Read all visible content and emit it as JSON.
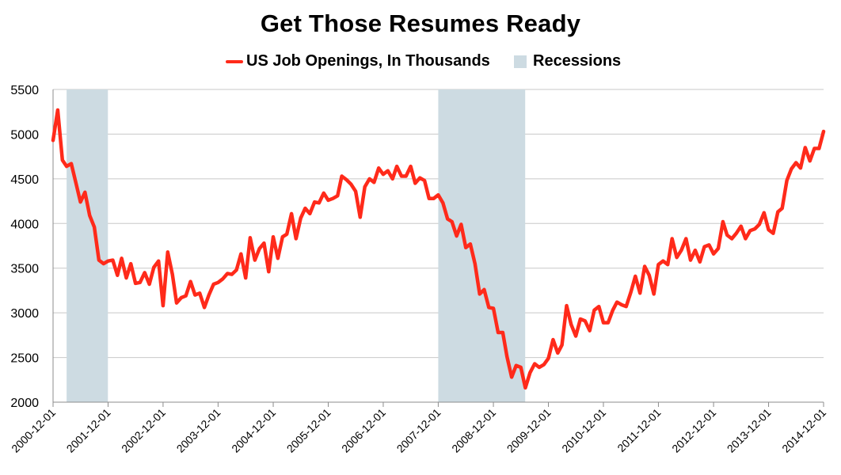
{
  "chart_data": {
    "type": "line",
    "title": "Get Those Resumes Ready",
    "legend_position": "top",
    "grid": true,
    "ylim": [
      2000,
      5500
    ],
    "y_ticks": [
      2000,
      2500,
      3000,
      3500,
      4000,
      4500,
      5000,
      5500
    ],
    "x_tick_labels": [
      "2000-12-01",
      "2001-12-01",
      "2002-12-01",
      "2003-12-01",
      "2004-12-01",
      "2005-12-01",
      "2006-12-01",
      "2007-12-01",
      "2008-12-01",
      "2009-12-01",
      "2010-12-01",
      "2011-12-01",
      "2012-12-01",
      "2013-12-01",
      "2014-12-01"
    ],
    "x_start": "2000-12-01",
    "x_end": "2014-12-01",
    "colors": {
      "line": "#ff2a1a",
      "recession": "#cddbe2",
      "grid": "#c8c8c8",
      "axis": "#8c8c8c"
    },
    "recessions": {
      "name": "Recessions",
      "periods": [
        {
          "start": "2001-03-01",
          "end": "2001-11-30"
        },
        {
          "start": "2007-12-01",
          "end": "2009-06-30"
        }
      ]
    },
    "series": [
      {
        "name": "US Job Openings, In Thousands",
        "x": [
          "2000-12-01",
          "2001-01-01",
          "2001-02-01",
          "2001-03-01",
          "2001-04-01",
          "2001-05-01",
          "2001-06-01",
          "2001-07-01",
          "2001-08-01",
          "2001-09-01",
          "2001-10-01",
          "2001-11-01",
          "2001-12-01",
          "2002-01-01",
          "2002-02-01",
          "2002-03-01",
          "2002-04-01",
          "2002-05-01",
          "2002-06-01",
          "2002-07-01",
          "2002-08-01",
          "2002-09-01",
          "2002-10-01",
          "2002-11-01",
          "2002-12-01",
          "2003-01-01",
          "2003-02-01",
          "2003-03-01",
          "2003-04-01",
          "2003-05-01",
          "2003-06-01",
          "2003-07-01",
          "2003-08-01",
          "2003-09-01",
          "2003-10-01",
          "2003-11-01",
          "2003-12-01",
          "2004-01-01",
          "2004-02-01",
          "2004-03-01",
          "2004-04-01",
          "2004-05-01",
          "2004-06-01",
          "2004-07-01",
          "2004-08-01",
          "2004-09-01",
          "2004-10-01",
          "2004-11-01",
          "2004-12-01",
          "2005-01-01",
          "2005-02-01",
          "2005-03-01",
          "2005-04-01",
          "2005-05-01",
          "2005-06-01",
          "2005-07-01",
          "2005-08-01",
          "2005-09-01",
          "2005-10-01",
          "2005-11-01",
          "2005-12-01",
          "2006-01-01",
          "2006-02-01",
          "2006-03-01",
          "2006-04-01",
          "2006-05-01",
          "2006-06-01",
          "2006-07-01",
          "2006-08-01",
          "2006-09-01",
          "2006-10-01",
          "2006-11-01",
          "2006-12-01",
          "2007-01-01",
          "2007-02-01",
          "2007-03-01",
          "2007-04-01",
          "2007-05-01",
          "2007-06-01",
          "2007-07-01",
          "2007-08-01",
          "2007-09-01",
          "2007-10-01",
          "2007-11-01",
          "2007-12-01",
          "2008-01-01",
          "2008-02-01",
          "2008-03-01",
          "2008-04-01",
          "2008-05-01",
          "2008-06-01",
          "2008-07-01",
          "2008-08-01",
          "2008-09-01",
          "2008-10-01",
          "2008-11-01",
          "2008-12-01",
          "2009-01-01",
          "2009-02-01",
          "2009-03-01",
          "2009-04-01",
          "2009-05-01",
          "2009-06-01",
          "2009-07-01",
          "2009-08-01",
          "2009-09-01",
          "2009-10-01",
          "2009-11-01",
          "2009-12-01",
          "2010-01-01",
          "2010-02-01",
          "2010-03-01",
          "2010-04-01",
          "2010-05-01",
          "2010-06-01",
          "2010-07-01",
          "2010-08-01",
          "2010-09-01",
          "2010-10-01",
          "2010-11-01",
          "2010-12-01",
          "2011-01-01",
          "2011-02-01",
          "2011-03-01",
          "2011-04-01",
          "2011-05-01",
          "2011-06-01",
          "2011-07-01",
          "2011-08-01",
          "2011-09-01",
          "2011-10-01",
          "2011-11-01",
          "2011-12-01",
          "2012-01-01",
          "2012-02-01",
          "2012-03-01",
          "2012-04-01",
          "2012-05-01",
          "2012-06-01",
          "2012-07-01",
          "2012-08-01",
          "2012-09-01",
          "2012-10-01",
          "2012-11-01",
          "2012-12-01",
          "2013-01-01",
          "2013-02-01",
          "2013-03-01",
          "2013-04-01",
          "2013-05-01",
          "2013-06-01",
          "2013-07-01",
          "2013-08-01",
          "2013-09-01",
          "2013-10-01",
          "2013-11-01",
          "2013-12-01",
          "2014-01-01",
          "2014-02-01",
          "2014-03-01",
          "2014-04-01",
          "2014-05-01",
          "2014-06-01",
          "2014-07-01",
          "2014-08-01",
          "2014-09-01",
          "2014-10-01",
          "2014-11-01",
          "2014-12-01"
        ],
        "y": [
          4930,
          5270,
          4710,
          4640,
          4670,
          4460,
          4240,
          4350,
          4090,
          3960,
          3590,
          3550,
          3580,
          3590,
          3420,
          3610,
          3390,
          3550,
          3330,
          3340,
          3450,
          3320,
          3510,
          3580,
          3080,
          3680,
          3430,
          3110,
          3170,
          3190,
          3350,
          3200,
          3220,
          3060,
          3200,
          3320,
          3340,
          3380,
          3440,
          3430,
          3480,
          3660,
          3390,
          3840,
          3590,
          3720,
          3780,
          3460,
          3850,
          3610,
          3850,
          3880,
          4110,
          3830,
          4060,
          4170,
          4110,
          4240,
          4230,
          4340,
          4260,
          4280,
          4310,
          4530,
          4490,
          4440,
          4360,
          4070,
          4410,
          4500,
          4460,
          4620,
          4550,
          4590,
          4500,
          4640,
          4530,
          4530,
          4640,
          4450,
          4510,
          4480,
          4280,
          4280,
          4320,
          4230,
          4050,
          4020,
          3860,
          3990,
          3730,
          3770,
          3550,
          3210,
          3260,
          3060,
          3050,
          2780,
          2780,
          2510,
          2280,
          2410,
          2390,
          2160,
          2330,
          2430,
          2390,
          2420,
          2490,
          2700,
          2550,
          2640,
          3080,
          2870,
          2740,
          2930,
          2910,
          2800,
          3030,
          3070,
          2890,
          2890,
          3030,
          3120,
          3090,
          3070,
          3230,
          3410,
          3220,
          3520,
          3420,
          3210,
          3540,
          3580,
          3540,
          3830,
          3620,
          3700,
          3830,
          3590,
          3700,
          3570,
          3740,
          3760,
          3660,
          3720,
          4020,
          3870,
          3830,
          3890,
          3970,
          3830,
          3920,
          3940,
          3990,
          4120,
          3930,
          3890,
          4130,
          4170,
          4480,
          4610,
          4680,
          4620,
          4850,
          4700,
          4840,
          4840,
          5030
        ]
      }
    ]
  },
  "legend": {
    "series_label": "US Job Openings, In Thousands",
    "recession_label": "Recessions"
  }
}
